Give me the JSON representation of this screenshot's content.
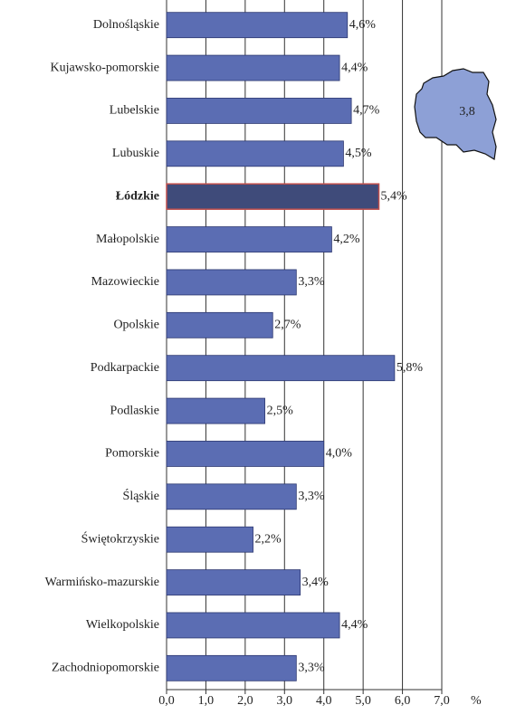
{
  "chart_data": {
    "type": "hbar",
    "categories": [
      "Dolnośląskie",
      "Kujawsko-pomorskie",
      "Lubelskie",
      "Lubuskie",
      "Łódzkie",
      "Małopolskie",
      "Mazowieckie",
      "Opolskie",
      "Podkarpackie",
      "Podlaskie",
      "Pomorskie",
      "Śląskie",
      "Świętokrzyskie",
      "Warmińsko-mazurskie",
      "Wielkopolskie",
      "Zachodniopomorskie"
    ],
    "values": [
      4.6,
      4.4,
      4.7,
      4.5,
      5.4,
      4.2,
      3.3,
      2.7,
      5.8,
      2.5,
      4.0,
      3.3,
      2.2,
      3.4,
      4.4,
      3.3
    ],
    "value_labels": [
      "4,6%",
      "4,4%",
      "4,7%",
      "4,5%",
      "5,4%",
      "4,2%",
      "3,3%",
      "2,7%",
      "5,8%",
      "2,5%",
      "4,0%",
      "3,3%",
      "2,2%",
      "3,4%",
      "4,4%",
      "3,3%"
    ],
    "color": "#5b6db3",
    "highlight_index": 4,
    "highlight_color": "#3f4b7a",
    "highlight_stroke": "#c0504d",
    "xlabel": "%",
    "xlim": [
      0,
      7
    ],
    "xticks": [
      {
        "value": 0,
        "label": "0,0"
      },
      {
        "value": 1,
        "label": "1,0"
      },
      {
        "value": 2,
        "label": "2,0"
      },
      {
        "value": 3,
        "label": "3,0"
      },
      {
        "value": 4,
        "label": "4,0"
      },
      {
        "value": 5,
        "label": "5,0"
      },
      {
        "value": 6,
        "label": "6,0"
      },
      {
        "value": 7,
        "label": "7,0"
      }
    ],
    "grid": true,
    "inset": {
      "value": 3.8,
      "label": "3,8",
      "color": "#8da0d6"
    }
  }
}
